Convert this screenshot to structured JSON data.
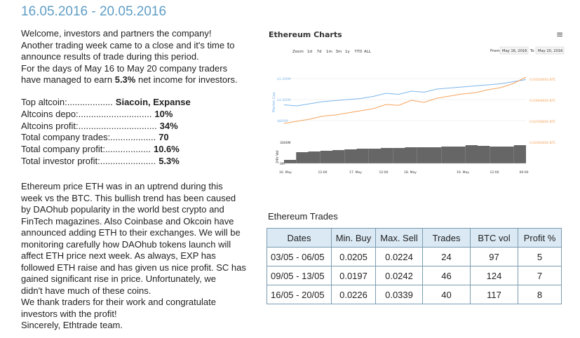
{
  "header": {
    "title": "16.05.2016 - 20.05.2016"
  },
  "intro": {
    "lines": [
      "Welcome, investors and partners the company!",
      "Another trading week came to a close and it's time to",
      "announce results of trade during this period.",
      "For the days of May 16 to May 20 company traders"
    ],
    "last_line_before": "have managed to earn ",
    "last_line_bold": "5.3%",
    "last_line_after": " net income for investors."
  },
  "stats": [
    {
      "label": "Top altcoin:..................",
      "value": "Siacoin, Expanse"
    },
    {
      "label": "Altcoins depo:.............................",
      "value": "10%"
    },
    {
      "label": "Altcoins profit:...............................",
      "value": "34%"
    },
    {
      "label": "Total company trades:..................",
      "value": "70"
    },
    {
      "label": "Total company profit:..................",
      "value": "10.6%"
    },
    {
      "label": "Total investor profit:......................",
      "value": "5.3%"
    }
  ],
  "body": {
    "lines": [
      "Ethereum price ETH was in an uptrend during this",
      "week vs the BTC. This bullish trend has been caused",
      "by DAOhub popularity in the world best crypto and",
      "FinTech magazines. Also Coinbase and Okcoin have",
      "announced adding ETH to their exchanges. We will be",
      "monitoring carefully how DAOhub tokens launch will",
      "affect ETH price next week. As always, EXP has",
      "followed ETH raise and has given us nice profit. SC has",
      "gained significant rise in price. Unfortunately, we",
      "didn't have much of these coins.",
      "We thank traders for their work and congratulate",
      "investors with the profit!",
      "Sincerely, Ethtrade team."
    ]
  },
  "chart": {
    "title": "Ethereum Charts",
    "menu": "≡",
    "zoom_label": "Zoom",
    "zoom_buttons": [
      "1d",
      "7d",
      "1m",
      "3m",
      "1y",
      "YTD",
      "ALL"
    ],
    "from_label": "From",
    "from": "May 16, 2016",
    "to_label": "To",
    "to": "May 20, 2016",
    "y_axis_label": "Market Cap",
    "vol_axis_label": "24h Vol",
    "ylim": [
      800,
      1200
    ],
    "yticks": [
      {
        "value": 1200,
        "label": "$1.200M"
      },
      {
        "value": 1000,
        "label": "$1.000M"
      },
      {
        "value": 800,
        "label": "$800M"
      }
    ],
    "y2lim": [
      0.025,
      0.035
    ],
    "y2ticks": [
      {
        "value": 0.035,
        "label": "0.03500000 BTC"
      },
      {
        "value": 0.03,
        "label": "0.03000000 BTC"
      },
      {
        "value": 0.025,
        "label": "0.02500000 BTC"
      },
      {
        "value": 0.02,
        "label": "0.02000000 BTC"
      }
    ],
    "vol_lim": [
      0,
      3000
    ],
    "vol_ticks": [
      {
        "value": 3000,
        "label": "3000M"
      },
      {
        "value": 0,
        "label": "0M"
      }
    ],
    "x_labels": [
      "16. May",
      "12:00",
      "17. May",
      "12:00",
      "18. May",
      "19. May",
      "12:00",
      "00:00"
    ],
    "series": [
      {
        "name": "Market Cap",
        "color": "#7cb5ec",
        "values": [
          950,
          940,
          960,
          980,
          990,
          1000,
          1010,
          1030,
          1060,
          1050,
          1080,
          1070,
          1100,
          1110,
          1120,
          1130,
          1140,
          1150,
          1170,
          1190
        ]
      },
      {
        "name": "Price BTC",
        "color": "#f7a35c",
        "axis": "y2",
        "values": [
          0.0245,
          0.025,
          0.0255,
          0.0262,
          0.0265,
          0.027,
          0.0275,
          0.028,
          0.029,
          0.0288,
          0.03,
          0.0295,
          0.0305,
          0.031,
          0.0315,
          0.0318,
          0.0325,
          0.033,
          0.034,
          0.0355
        ]
      },
      {
        "name": "24h Vol",
        "color": "#666666",
        "axis": "vol",
        "values": [
          500,
          1600,
          1700,
          1800,
          1900,
          2000,
          2100,
          2100,
          2200,
          2200,
          2300,
          2300,
          2300,
          2400,
          2400,
          2600,
          2500,
          2400,
          2400,
          2600
        ]
      }
    ]
  },
  "table": {
    "title": "Ethereum Trades",
    "columns": [
      "Dates",
      "Min. Buy",
      "Max. Sell",
      "Trades",
      "BTC vol",
      "Profit %"
    ],
    "rows": [
      [
        "03/05 - 06/05",
        "0.0205",
        "0.0224",
        "24",
        "97",
        "5"
      ],
      [
        "09/05 - 13/05",
        "0.0197",
        "0.0242",
        "46",
        "124",
        "7"
      ],
      [
        "16/05 - 20/05",
        "0.0226",
        "0.0339",
        "40",
        "117",
        "8"
      ]
    ]
  }
}
